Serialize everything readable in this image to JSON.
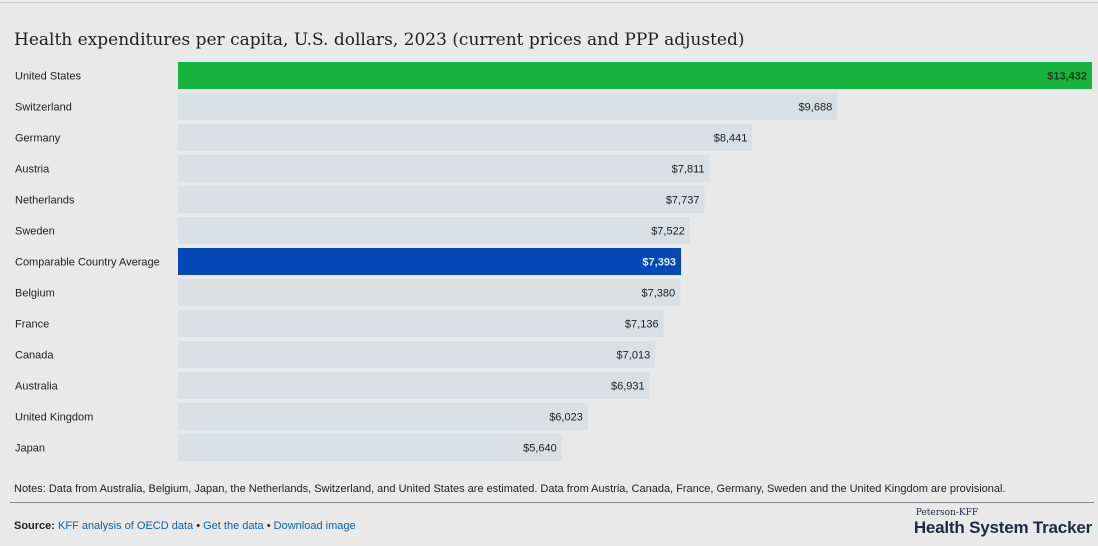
{
  "chart_data": {
    "type": "bar",
    "orientation": "horizontal",
    "title": "Health expenditures per capita, U.S. dollars, 2023 (current prices and PPP adjusted)",
    "categories": [
      "United States",
      "Switzerland",
      "Germany",
      "Austria",
      "Netherlands",
      "Sweden",
      "Comparable Country Average",
      "Belgium",
      "France",
      "Canada",
      "Australia",
      "United Kingdom",
      "Japan"
    ],
    "values": [
      13432,
      9688,
      8441,
      7811,
      7737,
      7522,
      7393,
      7380,
      7136,
      7013,
      6931,
      6023,
      5640
    ],
    "value_labels": [
      "$13,432",
      "$9,688",
      "$8,441",
      "$7,811",
      "$7,737",
      "$7,522",
      "$7,393",
      "$7,380",
      "$7,136",
      "$7,013",
      "$6,931",
      "$6,023",
      "$5,640"
    ],
    "colors": [
      "#16b33e",
      "#d9dfe2",
      "#d9dfe2",
      "#d9dfe2",
      "#d9dfe2",
      "#d9dfe2",
      "#0448b8",
      "#d9dfe2",
      "#d9dfe2",
      "#d9dfe2",
      "#d9dfe2",
      "#d9dfe2",
      "#d9dfe2"
    ],
    "label_colors": [
      "#1f3a1f",
      "#222222",
      "#222222",
      "#222222",
      "#222222",
      "#222222",
      "#d9f3ff",
      "#222222",
      "#222222",
      "#222222",
      "#222222",
      "#222222",
      "#222222"
    ],
    "xlim": [
      0,
      13432
    ],
    "xlabel": "",
    "ylabel": ""
  },
  "notes": "Notes: Data from Australia, Belgium, Japan, the Netherlands, Switzerland, and United States are estimated. Data from Austria, Canada, France, Germany, Sweden and the United Kingdom are provisional.",
  "source": {
    "label": "Source:",
    "links": [
      "KFF analysis of OECD data",
      "Get the data",
      "Download image"
    ],
    "separator": "•"
  },
  "brand": {
    "small": "Peterson-KFF",
    "big": "Health System Tracker"
  }
}
